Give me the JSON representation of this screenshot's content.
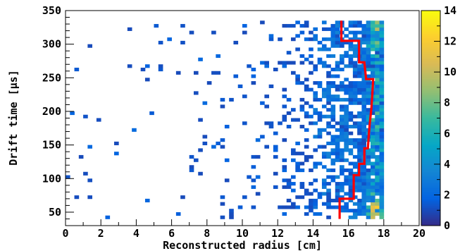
{
  "chart_data": {
    "type": "heatmap",
    "title": "",
    "xlabel": "Reconstructed radius [cm]",
    "ylabel": "Drift time [μs]",
    "xlim": [
      0,
      20
    ],
    "ylim": [
      30,
      350
    ],
    "x_ticks": [
      0,
      2,
      4,
      6,
      8,
      10,
      12,
      14,
      16,
      18,
      20
    ],
    "y_ticks": [
      50,
      100,
      150,
      200,
      250,
      300,
      350
    ],
    "colorbar": {
      "range": [
        0,
        14
      ],
      "ticks": [
        0,
        2,
        4,
        6,
        8,
        10,
        12,
        14
      ],
      "palette": [
        "#352a87",
        "#0363e1",
        "#1485d4",
        "#06a7c6",
        "#38b99e",
        "#92bf73",
        "#d9ba56",
        "#fcce2e",
        "#f9fb0e"
      ]
    },
    "bins": {
      "x_width": 0.25,
      "y_width": 5,
      "x_range": [
        0,
        18
      ],
      "y_range": [
        40,
        335
      ]
    },
    "density_model": "Counts rise steeply toward the wall near 17.5-18 cm; sparse hits inward; highest counts (~14) near r=17.5 cm at t<60 us",
    "boundary": {
      "color": "#ff0000",
      "points": [
        [
          15.5,
          40
        ],
        [
          15.5,
          70
        ],
        [
          16.3,
          70
        ],
        [
          16.3,
          105
        ],
        [
          16.6,
          105
        ],
        [
          16.6,
          122
        ],
        [
          16.9,
          122
        ],
        [
          16.9,
          145
        ],
        [
          17.1,
          145
        ],
        [
          17.15,
          165
        ],
        [
          17.2,
          180
        ],
        [
          17.3,
          205
        ],
        [
          17.35,
          225
        ],
        [
          17.4,
          248
        ],
        [
          17.0,
          248
        ],
        [
          16.9,
          273
        ],
        [
          16.6,
          273
        ],
        [
          16.6,
          305
        ],
        [
          15.6,
          305
        ],
        [
          15.6,
          335
        ]
      ]
    }
  }
}
